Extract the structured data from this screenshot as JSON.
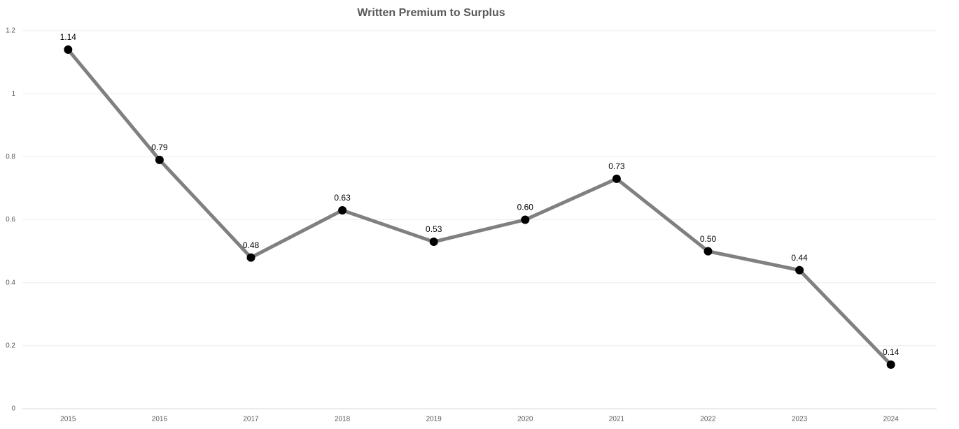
{
  "chart_data": {
    "type": "line",
    "title": "Written Premium to Surplus",
    "categories": [
      "2015",
      "2016",
      "2017",
      "2018",
      "2019",
      "2020",
      "2021",
      "2022",
      "2023",
      "2024"
    ],
    "values": [
      1.14,
      0.79,
      0.48,
      0.63,
      0.53,
      0.6,
      0.73,
      0.5,
      0.44,
      0.14
    ],
    "value_labels": [
      "1.14",
      "0.79",
      "0.48",
      "0.63",
      "0.53",
      "0.60",
      "0.73",
      "0.50",
      "0.44",
      "0.14"
    ],
    "color": "#808080",
    "marker_color": "#000000",
    "ylim": [
      0,
      1.2
    ],
    "yticks": [
      0,
      0.2,
      0.4,
      0.6,
      0.8,
      1,
      1.2
    ],
    "grid": true
  }
}
